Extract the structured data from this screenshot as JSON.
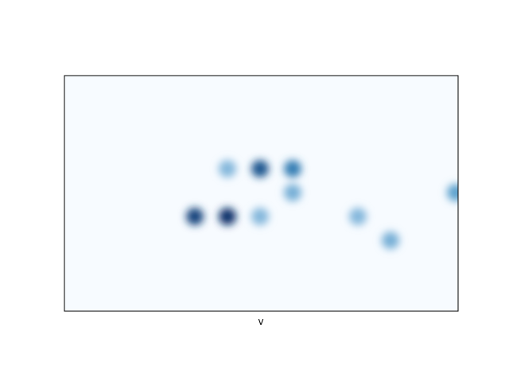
{
  "chart_data": {
    "type": "heatmap",
    "title": "",
    "xlabel": "v",
    "ylabel": "",
    "x_ticks": [],
    "y_ticks": [],
    "grid": false,
    "legend": "none",
    "colormap": "Blues",
    "interpolation": "smooth",
    "grid_size": {
      "cols": 12,
      "rows": 7
    },
    "cells": [
      {
        "col": 5,
        "row": 3,
        "value": 0.25
      },
      {
        "col": 6,
        "row": 3,
        "value": 0.8
      },
      {
        "col": 7,
        "row": 3,
        "value": 0.6
      },
      {
        "col": 7,
        "row": 4,
        "value": 0.3
      },
      {
        "col": 4,
        "row": 5,
        "value": 0.9
      },
      {
        "col": 5,
        "row": 5,
        "value": 1.0
      },
      {
        "col": 6,
        "row": 5,
        "value": 0.25
      },
      {
        "col": 9,
        "row": 5,
        "value": 0.25
      },
      {
        "col": 10,
        "row": 6,
        "value": 0.3
      },
      {
        "col": 12,
        "row": 4,
        "value": 0.4
      }
    ]
  },
  "colors": {
    "background": "#f7fbff",
    "low": "#c6dbef",
    "mid": "#4292c6",
    "high": "#08306b",
    "frame": "#000000"
  }
}
